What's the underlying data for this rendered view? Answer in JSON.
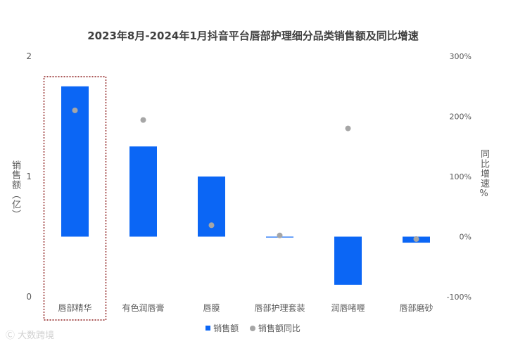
{
  "chart_data": {
    "type": "bar",
    "title": "2023年8月-2024年1月抖音平台唇部护理细分品类销售额及同比增速",
    "ylabel": "销售额（亿）",
    "y2label": "同比增速%",
    "ylim": [
      0,
      2
    ],
    "y_ticks": [
      "0",
      "1",
      "2"
    ],
    "y2lim": [
      -100,
      300
    ],
    "y2_ticks": [
      "-100%",
      "0%",
      "100%",
      "200%",
      "300%"
    ],
    "categories": [
      "唇部精华",
      "有色润唇膏",
      "唇膜",
      "唇部护理套装",
      "润唇啫喱",
      "唇部磨砂"
    ],
    "series": [
      {
        "name": "销售额",
        "kind": "bar",
        "axis": "left",
        "color": "#0b66f5",
        "values": [
          1.25,
          0.75,
          0.5,
          0.0,
          -0.4,
          -0.05
        ]
      },
      {
        "name": "销售额同比",
        "kind": "scatter",
        "axis": "right",
        "color": "#a6a6a6",
        "values": [
          210,
          194,
          19,
          2,
          180,
          -4
        ]
      }
    ],
    "baseline": 0.5,
    "highlight_category": "唇部精华",
    "legend_position": "bottom"
  },
  "watermark": "大数跨境"
}
